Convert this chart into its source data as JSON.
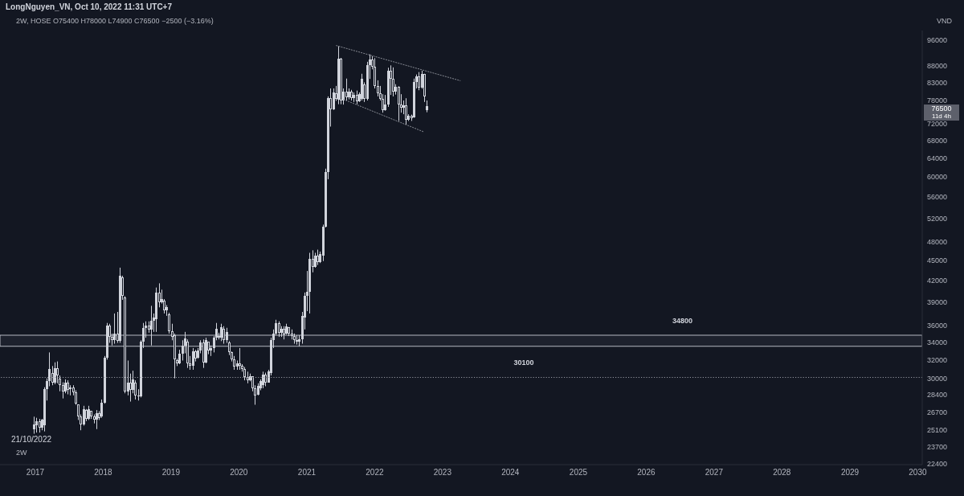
{
  "chart_data": {
    "type": "candlestick",
    "title": "LongNguyen_VN, Oct 10, 2022 11:31 UTC+7",
    "subtitle": "2W, HOSE O75400 H78000 L74900 C76500 −2500 (−3.16%)",
    "ylabel": "VND",
    "annotations": [
      "76500",
      "11d 4h",
      "21/10/2022",
      "2W"
    ],
    "color": "#d1d4dc",
    "log": true,
    "xlim": [
      "2016-06-25",
      "2030-01-25"
    ],
    "xticks": [
      "2017",
      "2018",
      "2019",
      "2020",
      "2021",
      "2022",
      "2023",
      "2024",
      "2025",
      "2026",
      "2027",
      "2028",
      "2029",
      "2030"
    ],
    "ylim": [
      22300,
      99200
    ],
    "yticks": [
      22400,
      23700,
      25100,
      26700,
      28400,
      30000,
      32000,
      34000,
      36000,
      39000,
      42000,
      45000,
      48000,
      52000,
      56000,
      60000,
      64000,
      68000,
      72000,
      78000,
      83000,
      88000,
      96000
    ],
    "x": [
      "2016-12-26",
      "2017-01-09",
      "2017-01-23",
      "2017-02-06",
      "2017-02-20",
      "2017-03-06",
      "2017-03-20",
      "2017-04-03",
      "2017-04-17",
      "2017-05-01",
      "2017-05-15",
      "2017-05-29",
      "2017-06-12",
      "2017-06-26",
      "2017-07-10",
      "2017-07-24",
      "2017-08-07",
      "2017-08-21",
      "2017-09-04",
      "2017-09-18",
      "2017-10-02",
      "2017-10-16",
      "2017-10-30",
      "2017-11-13",
      "2017-11-27",
      "2017-12-11",
      "2017-12-25",
      "2018-01-08",
      "2018-01-22",
      "2018-02-05",
      "2018-02-19",
      "2018-03-05",
      "2018-03-19",
      "2018-04-02",
      "2018-04-16",
      "2018-04-30",
      "2018-05-14",
      "2018-05-28",
      "2018-06-11",
      "2018-06-25",
      "2018-07-09",
      "2018-07-23",
      "2018-08-06",
      "2018-08-20",
      "2018-09-03",
      "2018-09-17",
      "2018-10-01",
      "2018-10-15",
      "2018-10-29",
      "2018-11-12",
      "2018-11-26",
      "2018-12-10",
      "2018-12-24",
      "2019-01-07",
      "2019-01-21",
      "2019-02-04",
      "2019-02-18",
      "2019-03-04",
      "2019-03-18",
      "2019-04-01",
      "2019-04-15",
      "2019-04-29",
      "2019-05-13",
      "2019-05-27",
      "2019-06-10",
      "2019-06-24",
      "2019-07-08",
      "2019-07-22",
      "2019-08-05",
      "2019-08-19",
      "2019-09-02",
      "2019-09-16",
      "2019-09-30",
      "2019-10-14",
      "2019-10-28",
      "2019-11-11",
      "2019-11-25",
      "2019-12-09",
      "2019-12-23",
      "2020-01-06",
      "2020-01-20",
      "2020-02-03",
      "2020-02-17",
      "2020-03-02",
      "2020-03-16",
      "2020-03-30",
      "2020-04-13",
      "2020-04-27",
      "2020-05-11",
      "2020-05-25",
      "2020-06-08",
      "2020-06-22",
      "2020-07-06",
      "2020-07-20",
      "2020-08-03",
      "2020-08-17",
      "2020-08-31",
      "2020-09-14",
      "2020-09-28",
      "2020-10-12",
      "2020-10-26",
      "2020-11-09",
      "2020-11-23",
      "2020-12-07",
      "2020-12-21",
      "2021-01-04",
      "2021-01-18",
      "2021-02-01",
      "2021-02-15",
      "2021-03-01",
      "2021-03-15",
      "2021-03-29",
      "2021-04-12",
      "2021-04-26",
      "2021-05-10",
      "2021-05-24",
      "2021-06-07",
      "2021-06-21",
      "2021-07-05",
      "2021-07-19",
      "2021-08-02",
      "2021-08-16",
      "2021-08-30",
      "2021-09-13",
      "2021-09-27",
      "2021-10-11",
      "2021-10-25",
      "2021-11-08",
      "2021-11-22",
      "2021-12-06",
      "2021-12-20",
      "2022-01-03",
      "2022-01-17",
      "2022-01-31",
      "2022-02-14",
      "2022-02-28",
      "2022-03-14",
      "2022-03-28",
      "2022-04-11",
      "2022-04-25",
      "2022-05-09",
      "2022-05-23",
      "2022-06-06",
      "2022-06-20",
      "2022-07-04",
      "2022-07-18",
      "2022-08-01",
      "2022-08-15",
      "2022-08-29",
      "2022-09-12",
      "2022-09-26",
      "2022-10-10"
    ],
    "ohlc": [
      [
        25200,
        26300,
        24800,
        25600
      ],
      [
        25500,
        26200,
        24900,
        25900
      ],
      [
        25900,
        26100,
        24900,
        25300
      ],
      [
        25300,
        26100,
        25100,
        26000
      ],
      [
        25500,
        29100,
        25000,
        28900
      ],
      [
        28900,
        30000,
        27800,
        29700
      ],
      [
        29700,
        32800,
        29200,
        31000
      ],
      [
        30600,
        31300,
        29300,
        29600
      ],
      [
        29600,
        31700,
        29400,
        31100
      ],
      [
        31100,
        31800,
        29500,
        30300
      ],
      [
        30000,
        30300,
        28700,
        29300
      ],
      [
        29300,
        29600,
        28000,
        28700
      ],
      [
        28700,
        29900,
        28500,
        29600
      ],
      [
        29600,
        29800,
        28400,
        28800
      ],
      [
        28900,
        29300,
        28300,
        29100
      ],
      [
        29100,
        29300,
        28300,
        28600
      ],
      [
        28600,
        28800,
        27400,
        27500
      ],
      [
        27400,
        27400,
        26000,
        26300
      ],
      [
        26300,
        26500,
        25100,
        25600
      ],
      [
        25600,
        27300,
        25500,
        27000
      ],
      [
        26900,
        27000,
        25900,
        26100
      ],
      [
        26100,
        27300,
        26000,
        27000
      ],
      [
        26800,
        26800,
        26100,
        26300
      ],
      [
        26300,
        26500,
        25700,
        26000
      ],
      [
        26000,
        26900,
        25200,
        26600
      ],
      [
        26600,
        26800,
        26000,
        26200
      ],
      [
        26300,
        27900,
        26200,
        27600
      ],
      [
        27600,
        32400,
        27500,
        32200
      ],
      [
        32200,
        36300,
        32000,
        36000
      ],
      [
        36000,
        36200,
        33900,
        34600
      ],
      [
        34600,
        35000,
        33600,
        34200
      ],
      [
        34200,
        37500,
        33800,
        35000
      ],
      [
        35000,
        37700,
        33900,
        34100
      ],
      [
        34100,
        43900,
        33900,
        42700
      ],
      [
        42500,
        42700,
        39300,
        39800
      ],
      [
        39600,
        39800,
        28500,
        28700
      ],
      [
        28700,
        31900,
        28300,
        29600
      ],
      [
        29600,
        30500,
        27700,
        28800
      ],
      [
        28800,
        30800,
        28500,
        29900
      ],
      [
        29600,
        29800,
        27900,
        28300
      ],
      [
        28300,
        28900,
        27800,
        28200
      ],
      [
        28200,
        34200,
        28100,
        34000
      ],
      [
        34000,
        36300,
        33300,
        35700
      ],
      [
        35700,
        36500,
        34500,
        36000
      ],
      [
        36000,
        36500,
        35100,
        35500
      ],
      [
        35500,
        38500,
        33600,
        36600
      ],
      [
        36600,
        37500,
        35200,
        37000
      ],
      [
        36800,
        41000,
        35200,
        40300
      ],
      [
        40300,
        41600,
        38300,
        39000
      ],
      [
        39000,
        40700,
        38800,
        39400
      ],
      [
        39200,
        39400,
        37500,
        37900
      ],
      [
        37900,
        38600,
        37200,
        38300
      ],
      [
        37400,
        37600,
        35000,
        35300
      ],
      [
        35300,
        36200,
        34200,
        34600
      ],
      [
        34800,
        35000,
        30000,
        32000
      ],
      [
        31900,
        32100,
        31300,
        31600
      ],
      [
        31600,
        33100,
        31500,
        32700
      ],
      [
        32700,
        34200,
        31900,
        33600
      ],
      [
        33600,
        35200,
        32700,
        34400
      ],
      [
        34000,
        34300,
        31100,
        31600
      ],
      [
        31600,
        32400,
        30900,
        31300
      ],
      [
        31300,
        33300,
        30900,
        32900
      ],
      [
        32900,
        33100,
        31800,
        32100
      ],
      [
        32200,
        33300,
        32100,
        33000
      ],
      [
        33000,
        34200,
        32700,
        33900
      ],
      [
        33900,
        34300,
        31100,
        31700
      ],
      [
        31700,
        34500,
        31600,
        34200
      ],
      [
        34000,
        34000,
        32600,
        33000
      ],
      [
        33000,
        33600,
        32400,
        33300
      ],
      [
        33300,
        34700,
        32800,
        34500
      ],
      [
        34500,
        36300,
        34200,
        35600
      ],
      [
        34700,
        35100,
        34300,
        34500
      ],
      [
        34500,
        36200,
        34100,
        35800
      ],
      [
        35600,
        35900,
        33800,
        34200
      ],
      [
        34200,
        35700,
        33900,
        35200
      ],
      [
        33900,
        34100,
        32500,
        32800
      ],
      [
        32800,
        32900,
        31800,
        32000
      ],
      [
        32000,
        32400,
        30900,
        31200
      ],
      [
        31200,
        31900,
        30900,
        31600
      ],
      [
        31600,
        33300,
        30900,
        31300
      ],
      [
        31300,
        31500,
        30700,
        31000
      ],
      [
        31000,
        31200,
        29800,
        30100
      ],
      [
        30100,
        30700,
        29500,
        29800
      ],
      [
        29800,
        30500,
        29700,
        30200
      ],
      [
        30200,
        30200,
        28700,
        29000
      ],
      [
        29000,
        29300,
        27400,
        28300
      ],
      [
        28400,
        29500,
        28300,
        29200
      ],
      [
        29000,
        29900,
        28800,
        29700
      ],
      [
        29300,
        30700,
        29000,
        30400
      ],
      [
        30400,
        30600,
        29200,
        29600
      ],
      [
        29600,
        30900,
        29600,
        30700
      ],
      [
        30600,
        34500,
        30300,
        34200
      ],
      [
        34200,
        35500,
        33300,
        35000
      ],
      [
        35000,
        36700,
        34800,
        36300
      ],
      [
        36300,
        36500,
        34600,
        35100
      ],
      [
        35100,
        35900,
        34600,
        35600
      ],
      [
        35600,
        35900,
        34300,
        34900
      ],
      [
        35000,
        36200,
        34900,
        35900
      ],
      [
        35800,
        35800,
        34700,
        35000
      ],
      [
        35000,
        35500,
        34300,
        34700
      ],
      [
        34700,
        35000,
        33800,
        34200
      ],
      [
        34200,
        34800,
        33700,
        34000
      ],
      [
        34000,
        34800,
        33500,
        34300
      ],
      [
        34300,
        37700,
        33800,
        37200
      ],
      [
        37000,
        40300,
        35500,
        39800
      ],
      [
        39800,
        43400,
        37800,
        40400
      ],
      [
        40400,
        46200,
        37500,
        45300
      ],
      [
        45300,
        46600,
        43200,
        44000
      ],
      [
        44000,
        46200,
        43900,
        45800
      ],
      [
        45800,
        46700,
        44300,
        44800
      ],
      [
        44800,
        46400,
        44600,
        46000
      ],
      [
        45800,
        50900,
        44900,
        50500
      ],
      [
        50500,
        61700,
        50400,
        61000
      ],
      [
        61000,
        79100,
        59500,
        78600
      ],
      [
        78600,
        81300,
        71300,
        75600
      ],
      [
        75600,
        81300,
        75500,
        80100
      ],
      [
        80000,
        82000,
        77900,
        78500
      ],
      [
        78300,
        94000,
        77000,
        90000
      ],
      [
        90000,
        90300,
        77000,
        78000
      ],
      [
        78000,
        81300,
        76900,
        80500
      ],
      [
        80500,
        84100,
        78000,
        78800
      ],
      [
        78800,
        81300,
        78300,
        80500
      ],
      [
        80500,
        80900,
        78000,
        78600
      ],
      [
        78600,
        80200,
        77600,
        79500
      ],
      [
        79500,
        80700,
        77000,
        77700
      ],
      [
        77700,
        80200,
        77600,
        79800
      ],
      [
        78500,
        85500,
        78000,
        84000
      ],
      [
        82500,
        83000,
        77600,
        78400
      ],
      [
        78400,
        89100,
        78000,
        88000
      ],
      [
        88000,
        91400,
        84000,
        89800
      ],
      [
        89800,
        90800,
        86800,
        87500
      ],
      [
        87500,
        90200,
        81300,
        82000
      ],
      [
        82000,
        83600,
        79100,
        80000
      ],
      [
        80000,
        82000,
        78000,
        78500
      ],
      [
        78500,
        79700,
        74800,
        75500
      ],
      [
        75500,
        79500,
        75300,
        77000
      ],
      [
        77000,
        87300,
        76300,
        86400
      ],
      [
        86400,
        88000,
        79500,
        84000
      ],
      [
        84000,
        87400,
        79100,
        80500
      ],
      [
        80500,
        82500,
        79600,
        81800
      ],
      [
        81800,
        81900,
        72700,
        77000
      ],
      [
        77000,
        79700,
        74800,
        76000
      ],
      [
        76000,
        78000,
        74400,
        76800
      ],
      [
        76800,
        78600,
        71800,
        73000
      ],
      [
        73000,
        74400,
        72700,
        74000
      ],
      [
        74000,
        74300,
        72700,
        73300
      ],
      [
        73600,
        84100,
        73500,
        83200
      ],
      [
        83200,
        85300,
        81300,
        84700
      ],
      [
        84700,
        86000,
        80800,
        81500
      ],
      [
        81500,
        86400,
        81200,
        85500
      ],
      [
        85500,
        85500,
        77600,
        79000
      ],
      [
        75400,
        78000,
        74900,
        76500
      ]
    ],
    "series": [
      {
        "type": "line",
        "color": "#9598a1",
        "line_style": "dotted",
        "x": [
          "2021-06-09",
          "2023-04-06"
        ],
        "values": [
          94200,
          83500
        ]
      },
      {
        "type": "line",
        "color": "#9598a1",
        "line_style": "dotted",
        "x": [
          "2021-07-17",
          "2022-09-23"
        ],
        "values": [
          78300,
          70000
        ]
      }
    ],
    "ref_lines": [
      {
        "axis": "y",
        "value": 30100,
        "label": "30100",
        "color": "#9598a1",
        "line_style": "dotted"
      }
    ],
    "bands": [
      {
        "axis": "y",
        "from": 33500,
        "to": 34800,
        "label": "34800",
        "color": "#d1d4dc"
      }
    ]
  }
}
